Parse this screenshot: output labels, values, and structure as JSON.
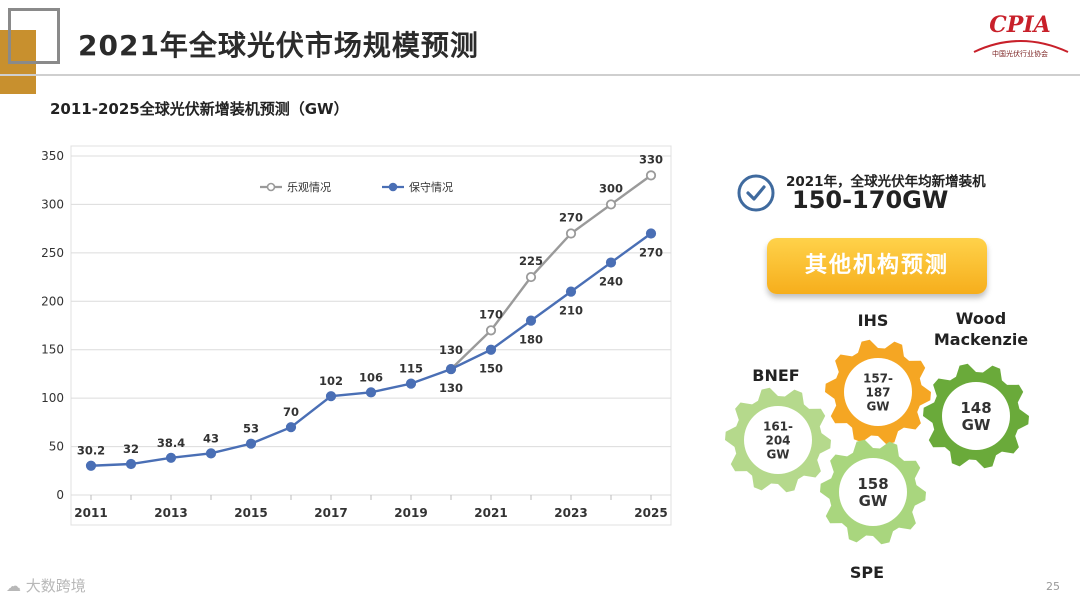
{
  "slide": {
    "title": "2021年全球光伏市场规模预测",
    "logo_text": "CPIA",
    "logo_sub": "中国光伏行业协会",
    "page_number": "25",
    "footer_brand": "大数跨境",
    "colors": {
      "accent_gold": "#c8902e",
      "optimistic": "#9a9a9a",
      "conservative": "#4a6fb5",
      "button": "#f6ae1c"
    }
  },
  "chart_data": {
    "type": "line",
    "title": "2011-2025全球光伏新增装机预测（GW）",
    "x": [
      2011,
      2012,
      2013,
      2014,
      2015,
      2016,
      2017,
      2018,
      2019,
      2020,
      2021,
      2022,
      2023,
      2024,
      2025
    ],
    "x_tick_labels": [
      "2011",
      "2013",
      "2015",
      "2017",
      "2019",
      "2021",
      "2023",
      "2025"
    ],
    "ylim": [
      0,
      350
    ],
    "y_ticks": [
      0,
      50,
      100,
      150,
      200,
      250,
      300,
      350
    ],
    "grid": true,
    "legend_position": "top-center",
    "series": [
      {
        "name": "乐观情况",
        "color": "#9a9a9a",
        "x": [
          2020,
          2021,
          2022,
          2023,
          2024,
          2025
        ],
        "values": [
          130,
          170,
          225,
          270,
          300,
          330
        ],
        "labels": [
          "130",
          "170",
          "225",
          "270",
          "300",
          "330"
        ]
      },
      {
        "name": "保守情况",
        "color": "#4a6fb5",
        "x": [
          2011,
          2012,
          2013,
          2014,
          2015,
          2016,
          2017,
          2018,
          2019,
          2020,
          2021,
          2022,
          2023,
          2024,
          2025
        ],
        "values": [
          30.2,
          32,
          38.4,
          43,
          53,
          70,
          102,
          106,
          115,
          130,
          150,
          180,
          210,
          240,
          270
        ],
        "labels": [
          "30.2",
          "32",
          "38.4",
          "43",
          "53",
          "70",
          "102",
          "106",
          "115",
          "130",
          "150",
          "180",
          "210",
          "240",
          "270"
        ]
      }
    ]
  },
  "panel": {
    "target_label": "2021年，全球光伏年均新增装机",
    "target_value": "150-170GW",
    "button_label": "其他机构预测",
    "gears": [
      {
        "agency": "IHS",
        "value": "157-\n187\nGW",
        "color": "#f5a623"
      },
      {
        "agency": "Wood\nMackenzie",
        "value": "148\nGW",
        "color": "#6aaa3a"
      },
      {
        "agency": "BNEF",
        "value": "161-\n204\nGW",
        "color": "#b5d98c"
      },
      {
        "agency": "SPE",
        "value": "158\nGW",
        "color": "#a9d67e"
      }
    ]
  }
}
